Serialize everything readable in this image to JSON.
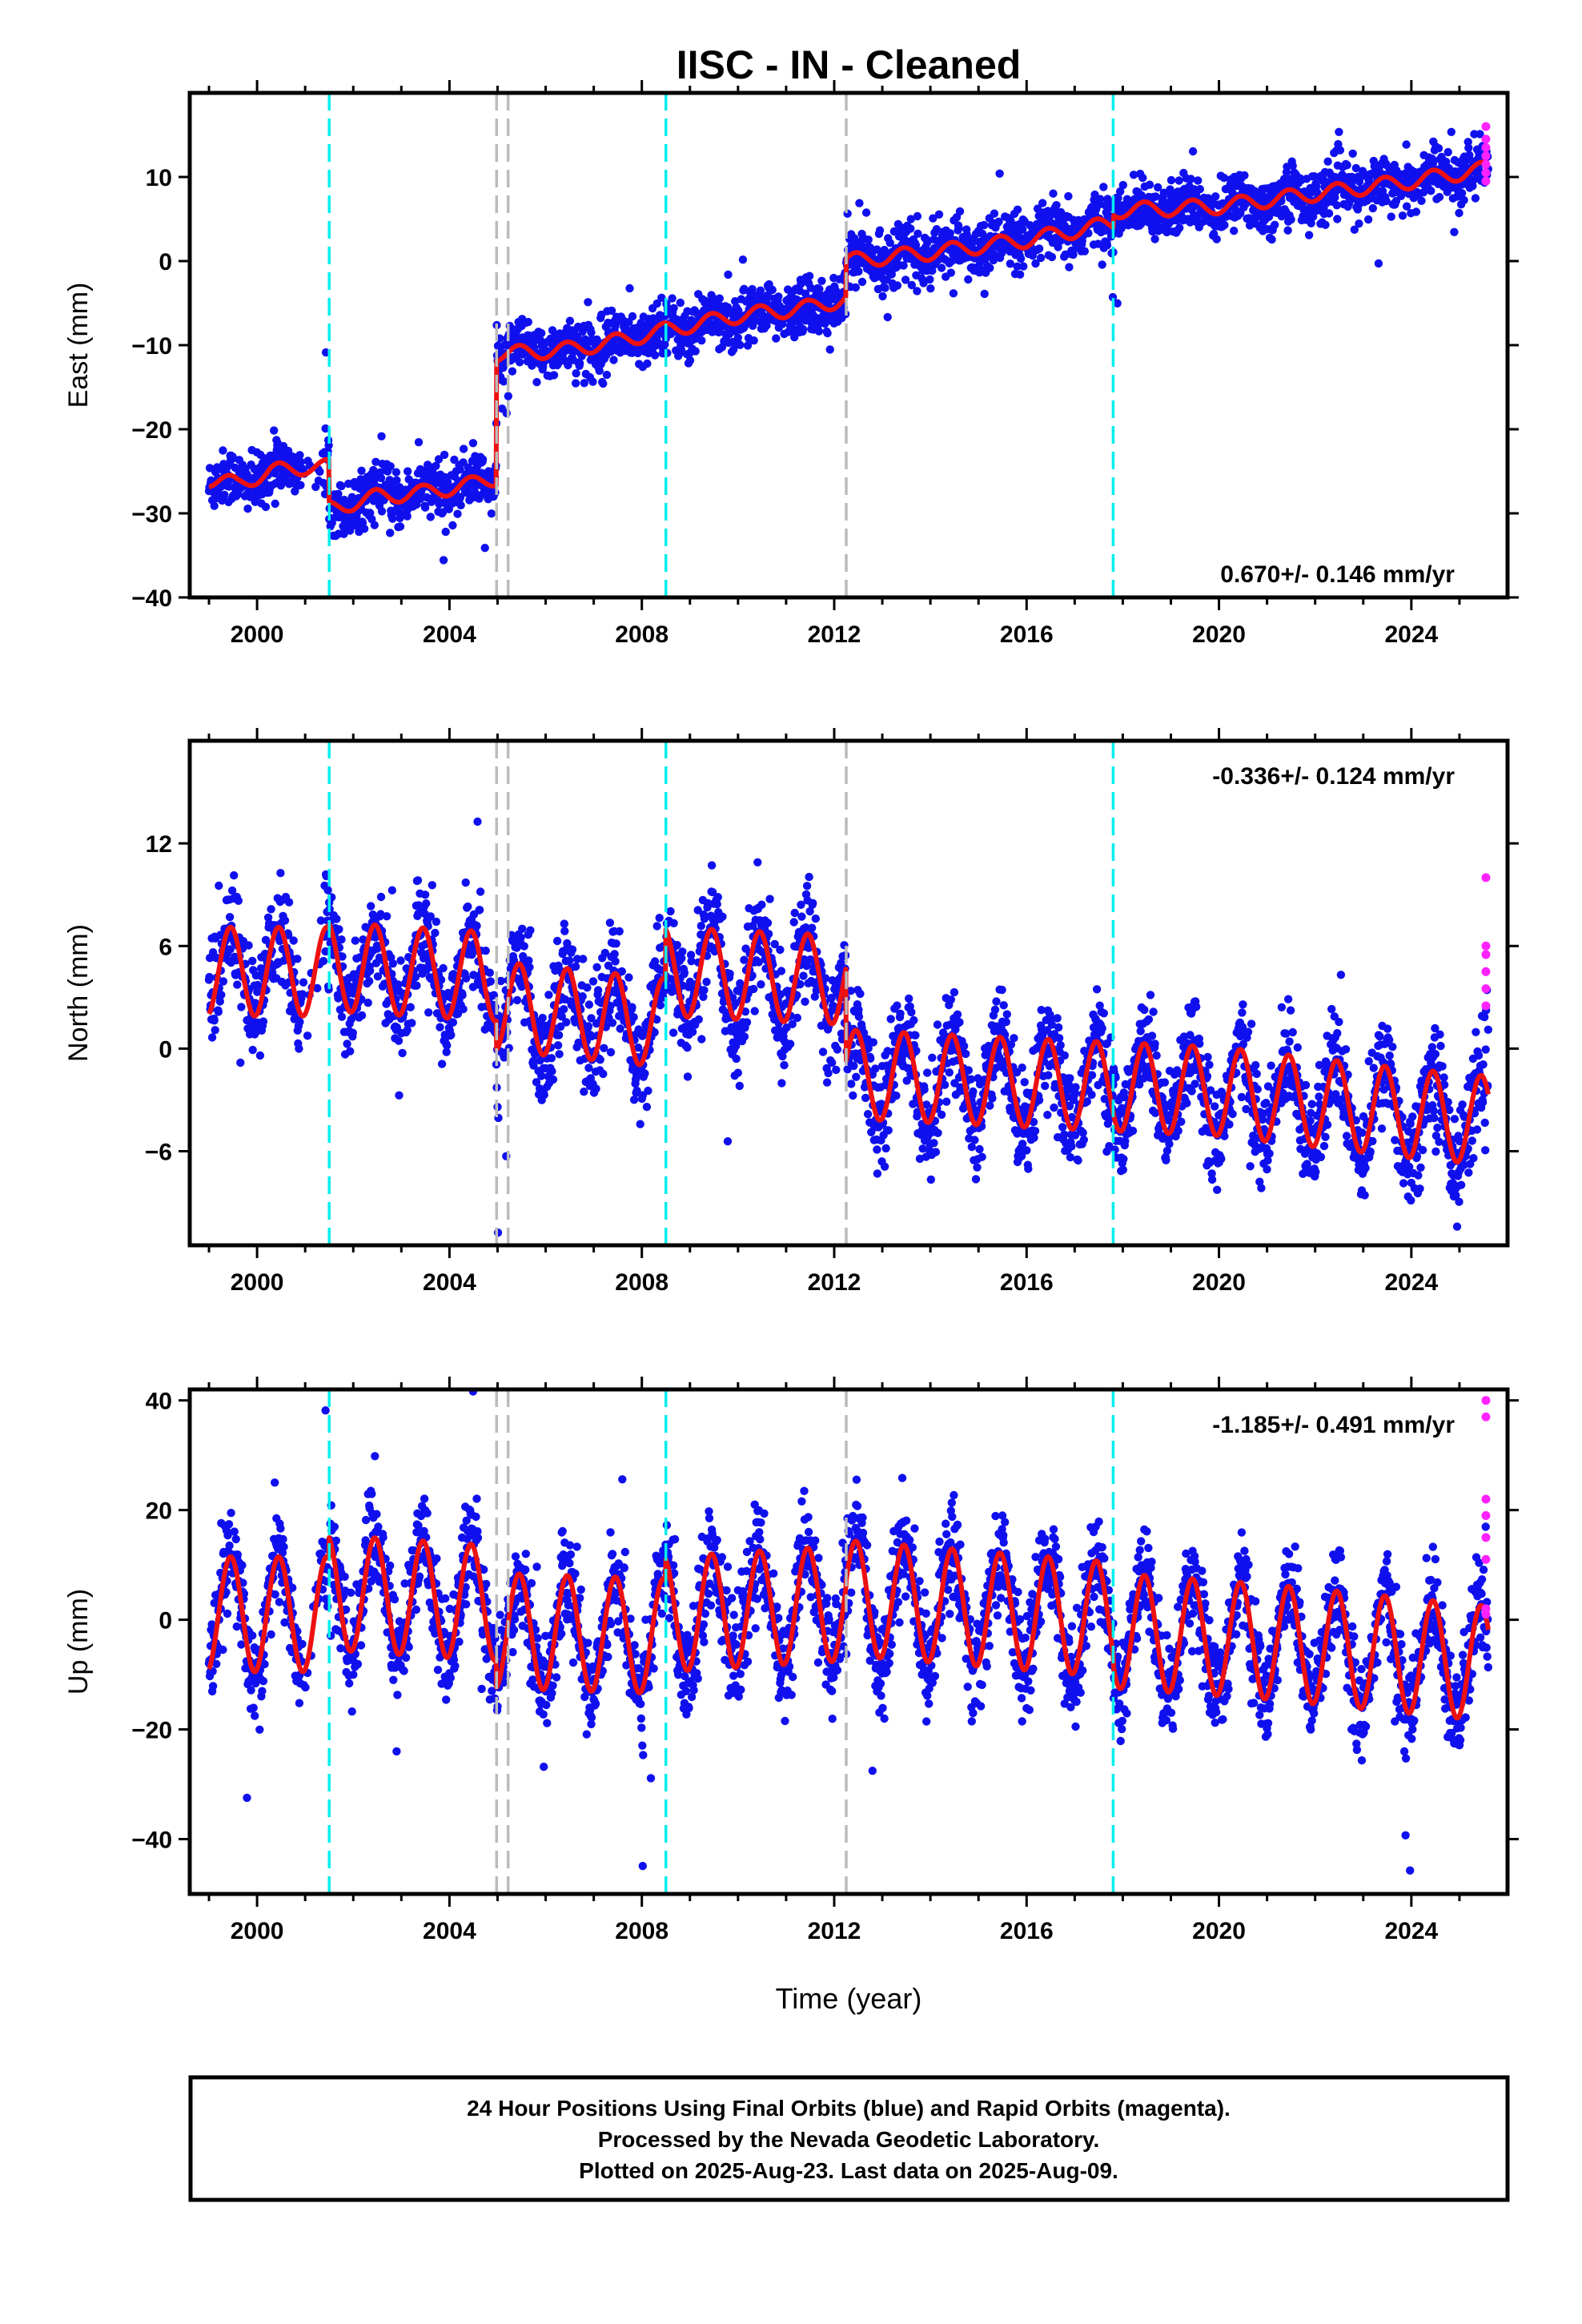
{
  "title": "IISC  - IN - Cleaned",
  "xlabel": "Time (year)",
  "footer": {
    "line1": "24 Hour Positions Using Final Orbits (blue) and Rapid Orbits (magenta).",
    "line2": "Processed by the Nevada Geodetic Laboratory.",
    "line3": "Plotted on 2025-Aug-23. Last data on 2025-Aug-09."
  },
  "colors": {
    "final": "#1010ee",
    "rapid": "#ff22ff",
    "model": "#ee1111",
    "equipment_change": "#00eeee",
    "earthquake": "#bbbbbb"
  },
  "chart_data": [
    {
      "type": "scatter",
      "component": "east",
      "ylabel": "East (mm)",
      "xlim": [
        1998.6,
        2026.0
      ],
      "ylim": [
        -40,
        20
      ],
      "yticks": [
        -40,
        -30,
        -20,
        -10,
        0,
        10
      ],
      "xticks": [
        2000,
        2004,
        2008,
        2012,
        2016,
        2020,
        2024
      ],
      "rate_label": "0.670+/- 0.146 mm/yr",
      "cyan_lines": [
        2001.5,
        2008.5,
        2017.8
      ],
      "gray_lines": [
        2004.98,
        2005.22,
        2012.25
      ],
      "model_points": [
        [
          1999.0,
          -26
        ],
        [
          1999.6,
          -26.5
        ],
        [
          2000.3,
          -25
        ],
        [
          2001.0,
          -24.5
        ],
        [
          2001.49,
          -24.5
        ],
        [
          2001.5,
          -29.5
        ],
        [
          2002.5,
          -28
        ],
        [
          2003.5,
          -27.5
        ],
        [
          2004.5,
          -26.5
        ],
        [
          2004.97,
          -25.8
        ],
        [
          2004.98,
          -11
        ],
        [
          2005.21,
          -11
        ],
        [
          2005.22,
          -11
        ],
        [
          2006.5,
          -10.5
        ],
        [
          2007.5,
          -9.5
        ],
        [
          2008.5,
          -8.2
        ],
        [
          2010.0,
          -6.5
        ],
        [
          2011.5,
          -5.5
        ],
        [
          2012.24,
          -4.5
        ],
        [
          2012.25,
          0
        ],
        [
          2014.0,
          1
        ],
        [
          2016.0,
          2.5
        ],
        [
          2017.8,
          4.5
        ],
        [
          2017.81,
          6
        ],
        [
          2020.0,
          6.5
        ],
        [
          2022.0,
          8
        ],
        [
          2024.0,
          9.5
        ],
        [
          2025.6,
          11
        ]
      ],
      "model_amplitude": 0.9,
      "scatter_sigma": 1.6,
      "rapid_x": 2025.55,
      "rapid_values": [
        9.5,
        10.5,
        11.5,
        12.5,
        13.5,
        14.5,
        16
      ]
    },
    {
      "type": "scatter",
      "component": "north",
      "ylabel": "North (mm)",
      "xlim": [
        1998.6,
        2026.0
      ],
      "ylim": [
        -11.5,
        18
      ],
      "yticks": [
        -6,
        0,
        6,
        12
      ],
      "xticks": [
        2000,
        2004,
        2008,
        2012,
        2016,
        2020,
        2024
      ],
      "rate_label": "-0.336+/- 0.124 mm/yr",
      "cyan_lines": [
        2001.5,
        2008.5,
        2017.8
      ],
      "gray_lines": [
        2004.98,
        2005.22,
        2012.25
      ],
      "model_points": [
        [
          1999.0,
          4.5
        ],
        [
          2001.49,
          4.5
        ],
        [
          2001.5,
          4.8
        ],
        [
          2004.97,
          4.2
        ],
        [
          2004.98,
          2.5
        ],
        [
          2008.49,
          1.5
        ],
        [
          2008.5,
          4.5
        ],
        [
          2012.24,
          4
        ],
        [
          2012.25,
          -1.5
        ],
        [
          2016.0,
          -2
        ],
        [
          2020.0,
          -2.5
        ],
        [
          2024.0,
          -3.8
        ],
        [
          2025.6,
          -4.2
        ]
      ],
      "model_amplitude": 2.6,
      "scatter_sigma": 1.5,
      "rapid_x": 2025.55,
      "rapid_values": [
        10,
        6,
        5.5,
        4.5,
        3.5,
        2.5
      ]
    },
    {
      "type": "scatter",
      "component": "up",
      "ylabel": "Up (mm)",
      "xlim": [
        1998.6,
        2026.0
      ],
      "ylim": [
        -50,
        42
      ],
      "yticks": [
        -40,
        -20,
        0,
        20,
        40
      ],
      "xticks": [
        2000,
        2004,
        2008,
        2012,
        2016,
        2020,
        2024
      ],
      "rate_label": "-1.185+/- 0.491 mm/yr",
      "cyan_lines": [
        2001.5,
        2008.5,
        2017.8
      ],
      "gray_lines": [
        2004.98,
        2005.22,
        2012.25
      ],
      "model_points": [
        [
          1999.0,
          1
        ],
        [
          2001.49,
          1
        ],
        [
          2001.5,
          5
        ],
        [
          2004.97,
          3
        ],
        [
          2004.98,
          -2
        ],
        [
          2008.49,
          -3
        ],
        [
          2008.5,
          1
        ],
        [
          2012.24,
          3
        ],
        [
          2012.25,
          4
        ],
        [
          2017.8,
          0
        ],
        [
          2017.81,
          -2
        ],
        [
          2021.0,
          -4
        ],
        [
          2025.6,
          -8
        ]
      ],
      "model_amplitude": 10.5,
      "scatter_sigma": 4.5,
      "rapid_x": 2025.55,
      "rapid_values": [
        40,
        37,
        22,
        19,
        15,
        11,
        2,
        1
      ]
    }
  ]
}
